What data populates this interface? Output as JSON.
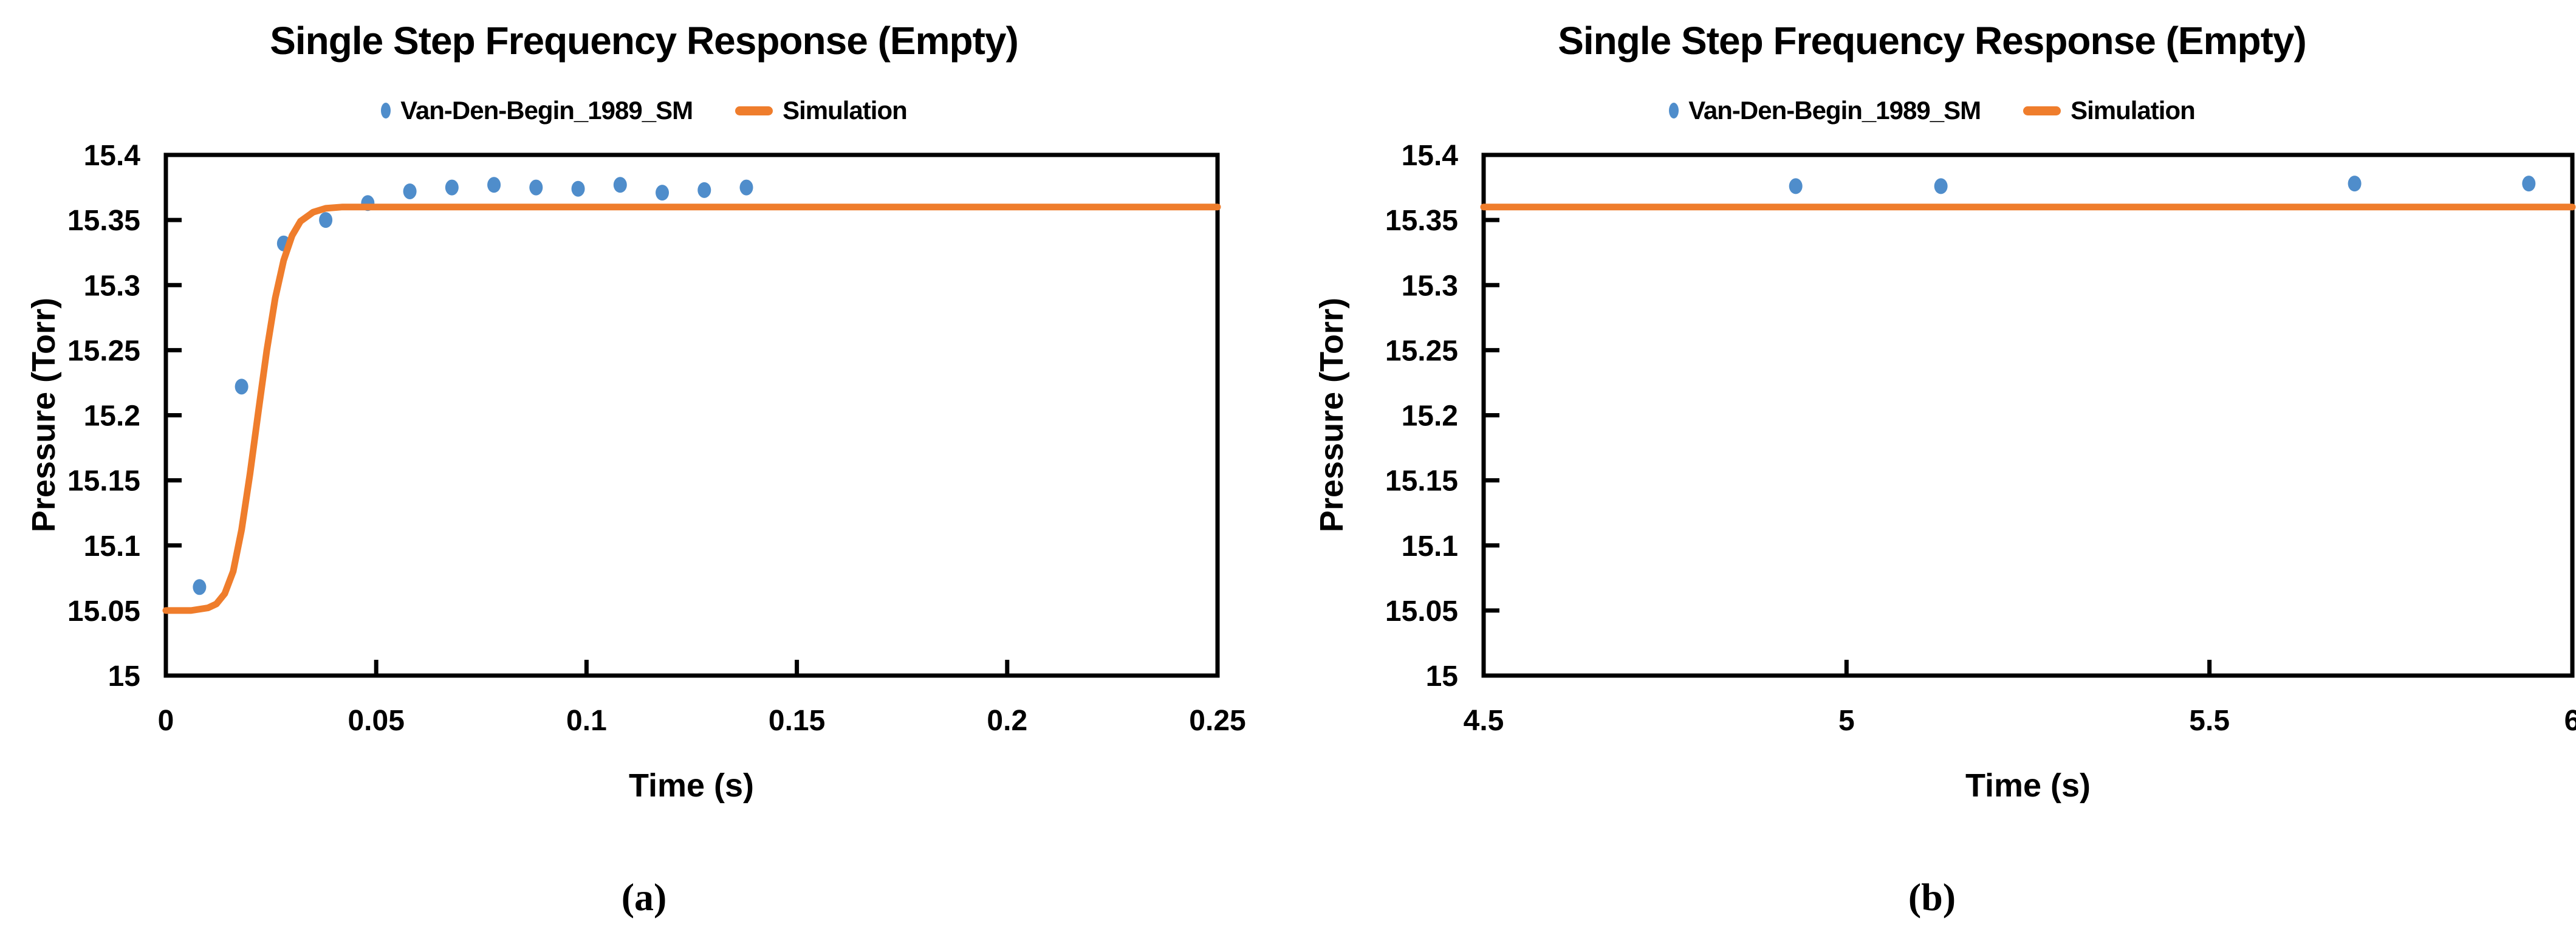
{
  "figure_background": "#FFFFFF",
  "colors": {
    "scatter_blue": "#4F8DCB",
    "line_orange": "#EF7D2C",
    "axis_black": "#000000",
    "text_black": "#000000"
  },
  "chart_data": [
    {
      "type": "scatter",
      "panel": "a",
      "title": "Single Step Frequency Response (Empty)",
      "caption": "(a)",
      "xlabel": "Time (s)",
      "ylabel": "Pressure (Torr)",
      "xlim": [
        0,
        0.25
      ],
      "ylim": [
        15,
        15.4
      ],
      "x_ticks": [
        0,
        0.05,
        0.1,
        0.15,
        0.2,
        0.25
      ],
      "x_tick_labels": [
        "0",
        "0.05",
        "0.1",
        "0.15",
        "0.2",
        "0.25"
      ],
      "y_ticks": [
        15,
        15.05,
        15.1,
        15.15,
        15.2,
        15.25,
        15.3,
        15.35,
        15.4
      ],
      "y_tick_labels": [
        "15",
        "15.05",
        "15.1",
        "15.15",
        "15.2",
        "15.25",
        "15.3",
        "15.35",
        "15.4"
      ],
      "grid": false,
      "legend_position": "top-center",
      "series": [
        {
          "name": "Van-Den-Begin_1989_SM",
          "type": "scatter",
          "color": "#4F8DCB",
          "points": [
            [
              0.008,
              15.068
            ],
            [
              0.018,
              15.222
            ],
            [
              0.028,
              15.332
            ],
            [
              0.038,
              15.35
            ],
            [
              0.048,
              15.363
            ],
            [
              0.058,
              15.372
            ],
            [
              0.068,
              15.375
            ],
            [
              0.078,
              15.377
            ],
            [
              0.088,
              15.375
            ],
            [
              0.098,
              15.374
            ],
            [
              0.108,
              15.377
            ],
            [
              0.118,
              15.371
            ],
            [
              0.128,
              15.373
            ],
            [
              0.138,
              15.375
            ]
          ]
        },
        {
          "name": "Simulation",
          "type": "line",
          "color": "#EF7D2C",
          "points": [
            [
              0,
              15.05
            ],
            [
              0.006,
              15.05
            ],
            [
              0.01,
              15.052
            ],
            [
              0.012,
              15.055
            ],
            [
              0.014,
              15.063
            ],
            [
              0.016,
              15.08
            ],
            [
              0.018,
              15.112
            ],
            [
              0.02,
              15.155
            ],
            [
              0.022,
              15.203
            ],
            [
              0.024,
              15.25
            ],
            [
              0.026,
              15.29
            ],
            [
              0.028,
              15.319
            ],
            [
              0.03,
              15.338
            ],
            [
              0.032,
              15.349
            ],
            [
              0.035,
              15.356
            ],
            [
              0.038,
              15.359
            ],
            [
              0.042,
              15.36
            ],
            [
              0.25,
              15.36
            ]
          ]
        }
      ]
    },
    {
      "type": "scatter",
      "panel": "b",
      "title": "Single Step Frequency Response (Empty)",
      "caption": "(b)",
      "xlabel": "Time (s)",
      "ylabel": "Pressure (Torr)",
      "xlim": [
        4.5,
        6
      ],
      "ylim": [
        15,
        15.4
      ],
      "x_ticks": [
        4.5,
        5,
        5.5,
        6
      ],
      "x_tick_labels": [
        "4.5",
        "5",
        "5.5",
        "6"
      ],
      "y_ticks": [
        15,
        15.05,
        15.1,
        15.15,
        15.2,
        15.25,
        15.3,
        15.35,
        15.4
      ],
      "y_tick_labels": [
        "15",
        "15.05",
        "15.1",
        "15.15",
        "15.2",
        "15.25",
        "15.3",
        "15.35",
        "15.4"
      ],
      "grid": false,
      "legend_position": "top-center",
      "series": [
        {
          "name": "Van-Den-Begin_1989_SM",
          "type": "scatter",
          "color": "#4F8DCB",
          "points": [
            [
              4.93,
              15.376
            ],
            [
              5.13,
              15.376
            ],
            [
              5.7,
              15.378
            ],
            [
              5.94,
              15.378
            ]
          ]
        },
        {
          "name": "Simulation",
          "type": "line",
          "color": "#EF7D2C",
          "points": [
            [
              4.5,
              15.36
            ],
            [
              6,
              15.36
            ]
          ]
        }
      ]
    }
  ]
}
